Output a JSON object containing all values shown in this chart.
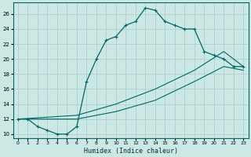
{
  "xlabel": "Humidex (Indice chaleur)",
  "xlim": [
    -0.5,
    23.5
  ],
  "ylim": [
    9.5,
    27.5
  ],
  "yticks": [
    10,
    12,
    14,
    16,
    18,
    20,
    22,
    24,
    26
  ],
  "xticks": [
    0,
    1,
    2,
    3,
    4,
    5,
    6,
    7,
    8,
    9,
    10,
    11,
    12,
    13,
    14,
    15,
    16,
    17,
    18,
    19,
    20,
    21,
    22,
    23
  ],
  "bg_color": "#cce8e4",
  "grid_color": "#aacccc",
  "line_color": "#006666",
  "curve1_x": [
    0,
    1,
    2,
    3,
    4,
    5,
    6,
    7,
    8,
    9,
    10,
    11,
    12,
    13,
    14,
    15,
    16,
    17,
    18,
    19,
    20,
    21,
    22,
    23
  ],
  "curve1_y": [
    12,
    12,
    11,
    10.5,
    10,
    10,
    11,
    17,
    20,
    22.5,
    23,
    24.5,
    25,
    26.8,
    26.5,
    25,
    24.5,
    24,
    24,
    21,
    20.5,
    20,
    19,
    19
  ],
  "curve2_x": [
    0,
    6,
    10,
    14,
    18,
    21,
    23
  ],
  "curve2_y": [
    12,
    12.5,
    14,
    16,
    18.5,
    21,
    19
  ],
  "curve3_x": [
    0,
    6,
    10,
    14,
    18,
    21,
    23
  ],
  "curve3_y": [
    12,
    12,
    13,
    14.5,
    17,
    19,
    18.5
  ]
}
